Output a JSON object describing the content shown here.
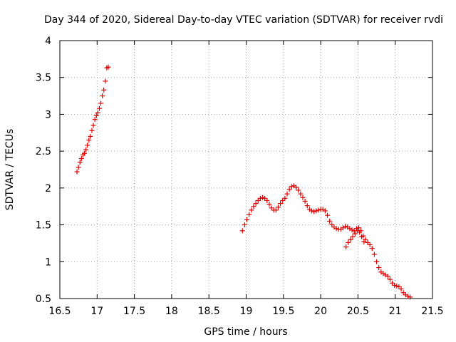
{
  "chart_data": {
    "type": "scatter",
    "title": "Day 344 of 2020, Sidereal Day-to-day VTEC variation (SDTVAR) for receiver rvdi",
    "xlabel": "GPS time / hours",
    "ylabel": "SDTVAR / TECUs",
    "xlim": [
      16.5,
      21.5
    ],
    "ylim": [
      0.5,
      4
    ],
    "xticks": [
      "16.5",
      "17",
      "17.5",
      "18",
      "18.5",
      "19",
      "19.5",
      "20",
      "20.5",
      "21",
      "21.5"
    ],
    "yticks": [
      "0.5",
      "1",
      "1.5",
      "2",
      "2.5",
      "3",
      "3.5",
      "4"
    ],
    "grid": true,
    "marker": "+",
    "series_color": "#e00000",
    "series": [
      {
        "name": "segment-1",
        "x": [
          16.73,
          16.75,
          16.77,
          16.79,
          16.81,
          16.83,
          16.85,
          16.87,
          16.89,
          16.91,
          16.93,
          16.95,
          16.97,
          16.99,
          17.01,
          17.03,
          17.05,
          17.07,
          17.09,
          17.11,
          17.13,
          17.15
        ],
        "y": [
          2.22,
          2.28,
          2.35,
          2.4,
          2.45,
          2.47,
          2.52,
          2.58,
          2.65,
          2.7,
          2.78,
          2.85,
          2.93,
          2.98,
          3.02,
          3.08,
          3.15,
          3.25,
          3.33,
          3.45,
          3.63,
          3.64
        ]
      },
      {
        "name": "segment-2",
        "x": [
          18.95,
          18.98,
          19.01,
          19.04,
          19.07,
          19.1,
          19.13,
          19.16,
          19.19,
          19.22,
          19.25,
          19.28,
          19.31,
          19.34,
          19.37,
          19.4,
          19.43,
          19.46,
          19.49,
          19.52,
          19.55,
          19.58,
          19.61,
          19.64,
          19.67,
          19.7,
          19.73,
          19.76,
          19.79,
          19.82,
          19.85,
          19.88,
          19.91,
          19.94,
          19.97,
          20.0,
          20.03,
          20.06,
          20.09,
          20.12,
          20.15,
          20.18,
          20.21,
          20.24,
          20.27,
          20.3,
          20.33,
          20.36,
          20.39,
          20.42,
          20.45,
          20.48,
          20.51,
          20.54,
          20.57,
          20.6,
          20.63,
          20.66,
          20.69,
          20.72,
          20.75,
          20.78,
          20.81,
          20.84,
          20.87,
          20.9,
          20.93,
          20.96,
          20.99,
          21.02,
          21.05,
          21.08,
          21.11,
          21.14,
          21.17,
          21.2
        ],
        "y": [
          1.42,
          1.5,
          1.57,
          1.64,
          1.7,
          1.75,
          1.79,
          1.83,
          1.86,
          1.87,
          1.86,
          1.83,
          1.78,
          1.73,
          1.7,
          1.7,
          1.74,
          1.79,
          1.83,
          1.86,
          1.92,
          1.98,
          2.02,
          2.03,
          2.01,
          1.97,
          1.92,
          1.87,
          1.82,
          1.76,
          1.71,
          1.69,
          1.68,
          1.69,
          1.7,
          1.71,
          1.71,
          1.69,
          1.63,
          1.55,
          1.5,
          1.47,
          1.45,
          1.44,
          1.44,
          1.46,
          1.48,
          1.47,
          1.45,
          1.43,
          1.42,
          1.45,
          1.46,
          1.42,
          1.35,
          1.3,
          1.26,
          1.23,
          1.18,
          1.1,
          1.0,
          0.92,
          0.86,
          0.84,
          0.82,
          0.8,
          0.76,
          0.71,
          0.68,
          0.67,
          0.66,
          0.63,
          0.58,
          0.55,
          0.53,
          0.52
        ]
      },
      {
        "name": "segment-3",
        "x": [
          20.34,
          20.37,
          20.4,
          20.43,
          20.46,
          20.49,
          20.52,
          20.55,
          20.58
        ],
        "y": [
          1.2,
          1.26,
          1.3,
          1.34,
          1.38,
          1.42,
          1.4,
          1.34,
          1.27
        ]
      }
    ]
  }
}
